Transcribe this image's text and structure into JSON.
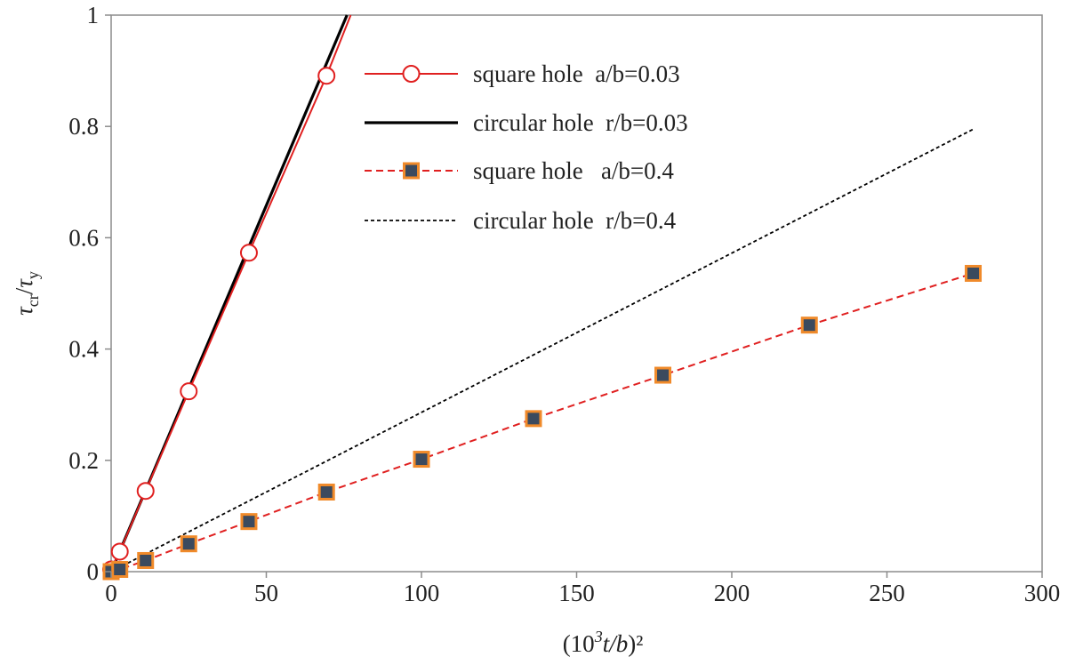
{
  "chart_data": {
    "type": "line",
    "xlabel": {
      "pre": "(10",
      "sup": "3",
      "mid": "t/b",
      "post": ")²"
    },
    "ylabel": {
      "sym1": "τ",
      "sub1": "cr",
      "slash": "/",
      "sym2": "τ",
      "sub2": "y"
    },
    "xlim": [
      0,
      300
    ],
    "ylim": [
      0,
      1
    ],
    "xticks": [
      0,
      50,
      100,
      150,
      200,
      250,
      300
    ],
    "yticks": [
      0,
      0.2,
      0.4,
      0.6,
      0.8,
      1
    ],
    "ytick_labels": [
      "0",
      "0.2",
      "0.4",
      "0.6",
      "0.8",
      "1"
    ],
    "grid": false,
    "legend_position": "top-center",
    "series": [
      {
        "name": "square hole  a/b=0.03",
        "style": "solid",
        "color": "#e02020",
        "marker": "circle-open",
        "x": [
          0,
          2.78,
          11.1,
          25,
          44.4,
          69.4,
          77.2
        ],
        "y": [
          0.004,
          0.036,
          0.145,
          0.324,
          0.573,
          0.891,
          1.0
        ],
        "marker_count": 6
      },
      {
        "name": "circular hole  r/b=0.03",
        "style": "solid",
        "color": "#000000",
        "marker": "none",
        "x": [
          0,
          76
        ],
        "y": [
          0,
          1.0
        ]
      },
      {
        "name": "square hole   a/b=0.4",
        "style": "dashed",
        "color": "#e02020",
        "marker": "square-filled",
        "marker_fill": "#3b4a5e",
        "marker_edge": "#f08a2a",
        "x": [
          0,
          2.78,
          11.1,
          25,
          44.4,
          69.4,
          100,
          136.1,
          177.8,
          225,
          277.8
        ],
        "y": [
          0,
          0.004,
          0.02,
          0.05,
          0.09,
          0.143,
          0.202,
          0.275,
          0.353,
          0.443,
          0.536
        ],
        "marker_count": 11
      },
      {
        "name": "circular hole  r/b=0.4",
        "style": "dotted",
        "color": "#000000",
        "marker": "none",
        "x": [
          0,
          277.8
        ],
        "y": [
          0,
          0.795
        ]
      }
    ]
  }
}
